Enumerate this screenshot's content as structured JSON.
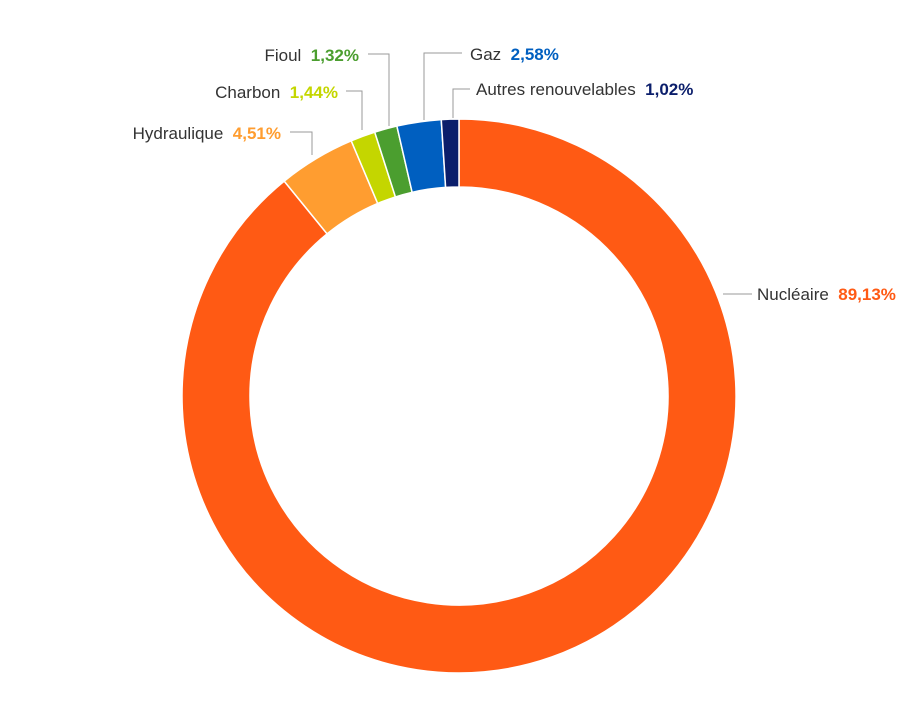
{
  "chart_data": {
    "type": "pie",
    "donut": true,
    "title": "",
    "legend": "none",
    "start_angle_deg": 0,
    "direction": "clockwise",
    "slices": [
      {
        "name": "Nucléaire",
        "value": 89.13,
        "display": "89,13%",
        "color": "#ff5a14",
        "label_color": "#ff5a14"
      },
      {
        "name": "Hydraulique",
        "value": 4.51,
        "display": "4,51%",
        "color": "#ff9d30",
        "label_color": "#ff9d30"
      },
      {
        "name": "Charbon",
        "value": 1.44,
        "display": "1,44%",
        "color": "#c4d600",
        "label_color": "#c4d600"
      },
      {
        "name": "Fioul",
        "value": 1.32,
        "display": "1,32%",
        "color": "#4b9e2f",
        "label_color": "#4b9e2f"
      },
      {
        "name": "Gaz",
        "value": 2.58,
        "display": "2,58%",
        "color": "#005fc0",
        "label_color": "#005fc0"
      },
      {
        "name": "Autres renouvelables",
        "value": 1.02,
        "display": "1,02%",
        "color": "#0b1e6b",
        "label_color": "#0b1e6b"
      }
    ]
  }
}
